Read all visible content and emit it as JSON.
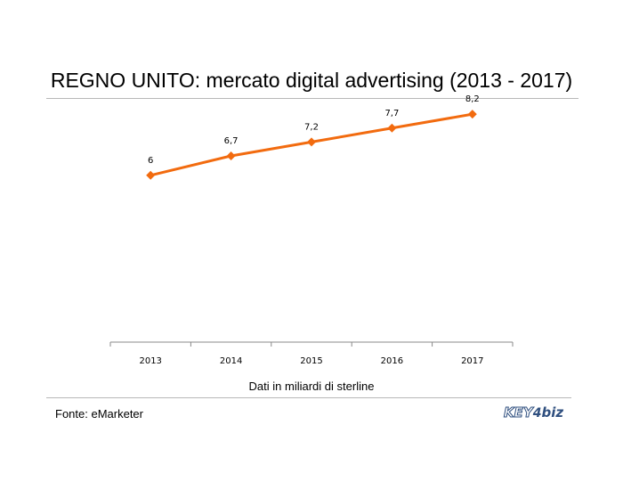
{
  "title": "REGNO UNITO: mercato digital advertising (2013  - 2017)",
  "source": "Fonte: eMarketer",
  "logo": {
    "key": "KEY",
    "four": "4",
    "biz": "biz",
    "color": "#2f4f7f"
  },
  "chart_data": {
    "type": "line",
    "categories": [
      "2013",
      "2014",
      "2015",
      "2016",
      "2017"
    ],
    "series": [
      {
        "values": [
          6,
          6.7,
          7.2,
          7.7,
          8.2
        ],
        "labels": [
          "6",
          "6,7",
          "7,2",
          "7,7",
          "8,2"
        ],
        "color": "#f26b0f",
        "marker": "diamond"
      }
    ],
    "title": "REGNO UNITO: mercato digital advertising (2013  - 2017)",
    "xlabel": "Dati in miliardi di sterline",
    "ylabel": "",
    "ylim": [
      0,
      10
    ],
    "grid": false,
    "legend": "none"
  }
}
